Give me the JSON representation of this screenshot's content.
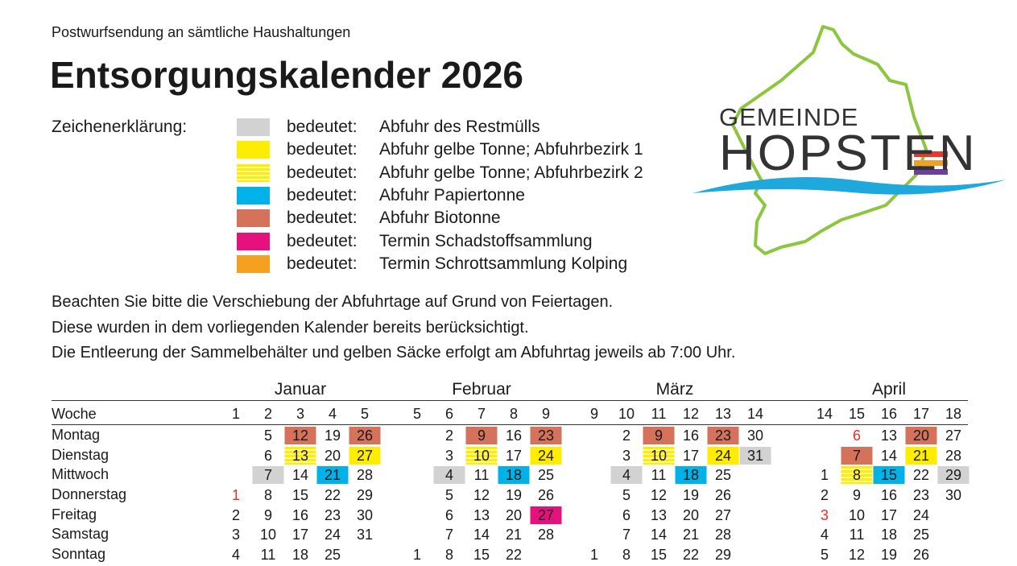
{
  "header": {
    "kicker": "Postwurfsendung an sämtliche Haushaltungen",
    "title": "Entsorgungskalender 2026"
  },
  "logo": {
    "top": "GEMEINDE",
    "name": "HOPSTEN"
  },
  "legend": {
    "label": "Zeichenerklärung:",
    "items": [
      {
        "color": "#d2d2d2",
        "prefix": "bedeutet:",
        "text": "Abfuhr des Restmülls"
      },
      {
        "color": "#ffed00",
        "prefix": "bedeutet:",
        "text": "Abfuhr gelbe Tonne; Abfuhrbezirk 1"
      },
      {
        "color": "#ffed00",
        "pattern": "striped",
        "prefix": "bedeutet:",
        "text": "Abfuhr gelbe Tonne; Abfuhrbezirk 2"
      },
      {
        "color": "#00b2e8",
        "prefix": "bedeutet:",
        "text": "Abfuhr Papiertonne"
      },
      {
        "color": "#d4725c",
        "prefix": "bedeutet:",
        "text": "Abfuhr Biotonne"
      },
      {
        "color": "#e5127d",
        "prefix": "bedeutet:",
        "text": "Termin Schadstoffsammlung"
      },
      {
        "color": "#f5a01f",
        "prefix": "bedeutet:",
        "text": "Termin Schrottsammlung Kolping"
      }
    ]
  },
  "notes": [
    "Beachten Sie bitte die Verschiebung der Abfuhrtage auf Grund von Feiertagen.",
    "Diese wurden in dem vorliegenden Kalender bereits berücksichtigt.",
    "Die Entleerung der Sammelbehälter und gelben Säcke erfolgt am Abfuhrtag jeweils ab 7:00 Uhr."
  ],
  "calendar": {
    "week_label": "Woche",
    "row_labels": [
      "Montag",
      "Dienstag",
      "Mittwoch",
      "Donnerstag",
      "Freitag",
      "Samstag",
      "Sonntag"
    ],
    "months": [
      {
        "name": "Januar",
        "weeks": [
          1,
          2,
          3,
          4,
          5
        ],
        "rows": [
          [
            null,
            5,
            {
              "day": 12,
              "color": "#d4725c"
            },
            19,
            {
              "day": 26,
              "color": "#d4725c"
            }
          ],
          [
            null,
            6,
            {
              "day": 13,
              "color": "#ffed00",
              "pattern": "striped"
            },
            20,
            {
              "day": 27,
              "color": "#ffed00"
            }
          ],
          [
            null,
            {
              "day": 7,
              "color": "#d2d2d2"
            },
            14,
            {
              "day": 21,
              "color": "#00b2e8"
            },
            28
          ],
          [
            {
              "day": 1,
              "text_color": "#e0312a"
            },
            8,
            15,
            22,
            29
          ],
          [
            2,
            9,
            16,
            23,
            30
          ],
          [
            3,
            10,
            17,
            24,
            31
          ],
          [
            4,
            11,
            18,
            25,
            null
          ]
        ]
      },
      {
        "name": "Februar",
        "weeks": [
          5,
          6,
          7,
          8,
          9
        ],
        "rows": [
          [
            null,
            2,
            {
              "day": 9,
              "color": "#d4725c"
            },
            16,
            {
              "day": 23,
              "color": "#d4725c"
            }
          ],
          [
            null,
            3,
            {
              "day": 10,
              "color": "#ffed00",
              "pattern": "striped"
            },
            17,
            {
              "day": 24,
              "color": "#ffed00"
            }
          ],
          [
            null,
            {
              "day": 4,
              "color": "#d2d2d2"
            },
            11,
            {
              "day": 18,
              "color": "#00b2e8"
            },
            25
          ],
          [
            null,
            5,
            12,
            19,
            26
          ],
          [
            null,
            6,
            13,
            20,
            {
              "day": 27,
              "color": "#e5127d"
            }
          ],
          [
            null,
            7,
            14,
            21,
            28
          ],
          [
            1,
            8,
            15,
            22,
            null
          ]
        ]
      },
      {
        "name": "März",
        "weeks": [
          9,
          10,
          11,
          12,
          13,
          14
        ],
        "rows": [
          [
            null,
            2,
            {
              "day": 9,
              "color": "#d4725c"
            },
            16,
            {
              "day": 23,
              "color": "#d4725c"
            },
            30
          ],
          [
            null,
            3,
            {
              "day": 10,
              "color": "#ffed00",
              "pattern": "striped"
            },
            17,
            {
              "day": 24,
              "color": "#ffed00"
            },
            {
              "day": 31,
              "color": "#d2d2d2"
            }
          ],
          [
            null,
            {
              "day": 4,
              "color": "#d2d2d2"
            },
            11,
            {
              "day": 18,
              "color": "#00b2e8"
            },
            25,
            null
          ],
          [
            null,
            5,
            12,
            19,
            26,
            null
          ],
          [
            null,
            6,
            13,
            20,
            27,
            null
          ],
          [
            null,
            7,
            14,
            21,
            28,
            null
          ],
          [
            1,
            8,
            15,
            22,
            29,
            null
          ]
        ]
      },
      {
        "name": "April",
        "weeks": [
          14,
          15,
          16,
          17,
          18
        ],
        "rows": [
          [
            null,
            {
              "day": 6,
              "text_color": "#e0312a"
            },
            13,
            {
              "day": 20,
              "color": "#d4725c"
            },
            27
          ],
          [
            null,
            {
              "day": 7,
              "color": "#d4725c"
            },
            14,
            {
              "day": 21,
              "color": "#ffed00"
            },
            28
          ],
          [
            1,
            {
              "day": 8,
              "color": "#ffed00",
              "pattern": "striped"
            },
            {
              "day": 15,
              "color": "#00b2e8"
            },
            22,
            {
              "day": 29,
              "color": "#d2d2d2"
            }
          ],
          [
            2,
            9,
            16,
            23,
            30
          ],
          [
            {
              "day": 3,
              "text_color": "#e0312a"
            },
            10,
            17,
            24,
            null
          ],
          [
            4,
            11,
            18,
            25,
            null
          ],
          [
            5,
            12,
            19,
            26,
            null
          ]
        ]
      }
    ]
  }
}
